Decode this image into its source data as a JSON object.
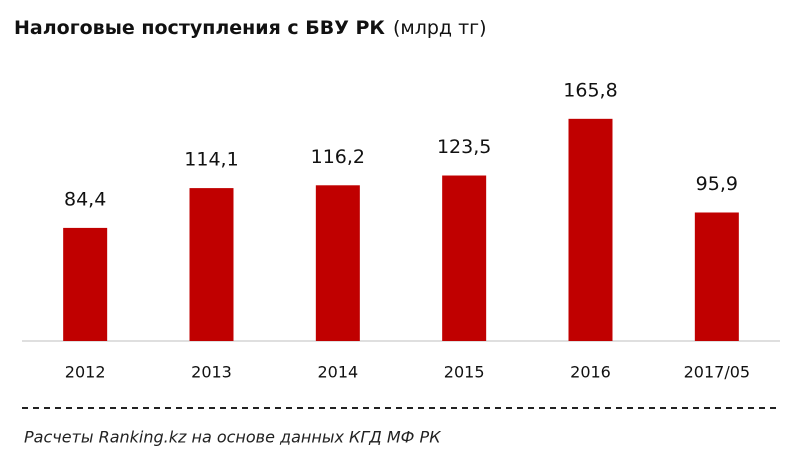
{
  "chart_data": {
    "type": "bar",
    "title": "Налоговые поступления с БВУ РК",
    "unit_label": "(млрд тг)",
    "categories": [
      "2012",
      "2013",
      "2014",
      "2015",
      "2016",
      "2017/05"
    ],
    "values": [
      84.4,
      114.1,
      116.2,
      123.5,
      165.8,
      95.9
    ],
    "value_labels": [
      "84,4",
      "114,1",
      "116,2",
      "123,5",
      "165,8",
      "95,9"
    ],
    "color": "#c00000",
    "source": "Расчеты Ranking.kz на основе данных КГД МФ РК"
  }
}
